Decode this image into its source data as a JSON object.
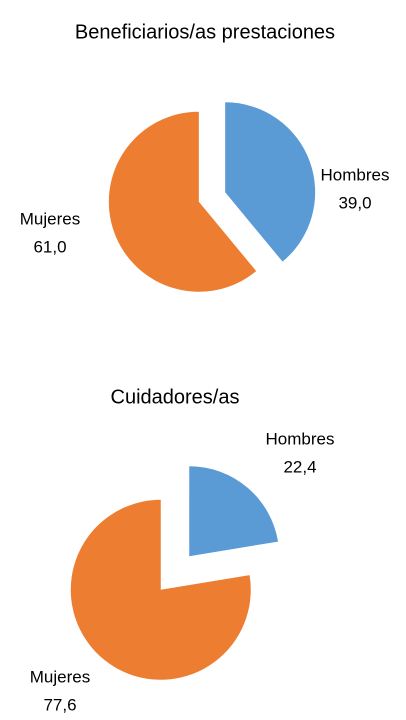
{
  "chart_data": [
    {
      "type": "pie",
      "title": "Beneficiarios/as prestaciones",
      "categories": [
        "Hombres",
        "Mujeres"
      ],
      "values": [
        39.0,
        61.0
      ],
      "value_labels": [
        "39,0",
        "61,0"
      ],
      "colors": [
        "#5b9bd5",
        "#ed7d31"
      ]
    },
    {
      "type": "pie",
      "title": "Cuidadores/as",
      "categories": [
        "Hombres",
        "Mujeres"
      ],
      "values": [
        22.4,
        77.6
      ],
      "value_labels": [
        "22,4",
        "77,6"
      ],
      "colors": [
        "#5b9bd5",
        "#ed7d31"
      ]
    }
  ]
}
